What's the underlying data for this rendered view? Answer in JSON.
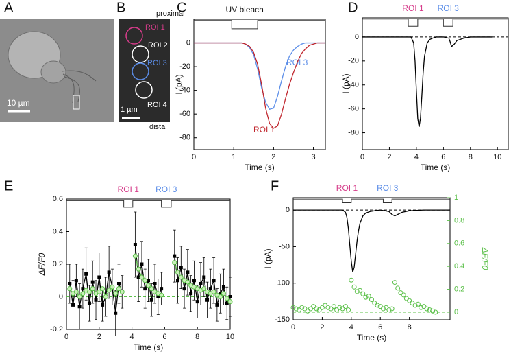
{
  "images": [
    {
      "panel": "A",
      "scale_bar": "10 µm"
    },
    {
      "panel": "B",
      "scale_bar": "1 µm",
      "top": "proximal",
      "bottom": "distal",
      "rois": [
        {
          "name": "ROI 1",
          "color": "#d63c8a"
        },
        {
          "name": "ROI 2",
          "color": "#ffffff"
        },
        {
          "name": "ROI 3",
          "color": "#5b8de8"
        },
        {
          "name": "ROI 4",
          "color": "#ffffff"
        }
      ]
    }
  ],
  "chart_data": [
    {
      "type": "line",
      "panel": "C",
      "xlabel": "Time (s)",
      "ylabel": "I (pA)",
      "xlim": [
        0,
        3.3
      ],
      "ylim": [
        -90,
        20
      ],
      "xticks": [
        0,
        1,
        2,
        3
      ],
      "yticks": [
        0,
        -20,
        -40,
        -60,
        -80
      ],
      "stimulus": {
        "label": "UV bleach",
        "high": 19,
        "low": 12,
        "color": "#333333",
        "pulses": [
          {
            "on": 0.95,
            "off": 1.6
          }
        ]
      },
      "reference_lines": [
        {
          "value": 0,
          "axis": "y",
          "color": "#000000"
        }
      ],
      "series": [
        {
          "name": "ROI 3",
          "color": "#5b8de8",
          "mode": "lines",
          "x": [
            0,
            0.1,
            0.2,
            0.3,
            0.4,
            0.5,
            0.6,
            0.7,
            0.8,
            0.9,
            1.0,
            1.1,
            1.2,
            1.3,
            1.4,
            1.5,
            1.6,
            1.7,
            1.8,
            1.9,
            2.0,
            2.1,
            2.2,
            2.3,
            2.4,
            2.5,
            2.6,
            2.7,
            2.8,
            2.9,
            3.0,
            3.1,
            3.2,
            3.3
          ],
          "values": [
            0,
            0,
            0,
            0,
            0,
            0,
            0,
            0,
            0,
            0,
            0,
            0,
            0,
            -1,
            -4,
            -10,
            -22,
            -38,
            -50,
            -56,
            -55,
            -45,
            -32,
            -20,
            -11,
            -6,
            -3,
            -1,
            0,
            0,
            0,
            0,
            0,
            0
          ]
        },
        {
          "name": "ROI 1",
          "color": "#c0262d",
          "mode": "lines",
          "x": [
            0,
            0.1,
            0.2,
            0.3,
            0.4,
            0.5,
            0.6,
            0.7,
            0.8,
            0.9,
            1.0,
            1.1,
            1.2,
            1.3,
            1.4,
            1.5,
            1.6,
            1.7,
            1.8,
            1.9,
            2.0,
            2.1,
            2.2,
            2.3,
            2.4,
            2.5,
            2.6,
            2.7,
            2.8,
            2.9,
            3.0,
            3.1,
            3.2,
            3.3
          ],
          "values": [
            0,
            0,
            0,
            0,
            0,
            0,
            0,
            0,
            0,
            0,
            0,
            0,
            0,
            -1,
            -3,
            -8,
            -18,
            -35,
            -55,
            -68,
            -72,
            -70,
            -60,
            -47,
            -35,
            -25,
            -16,
            -9,
            -5,
            -2,
            -1,
            0,
            0,
            0
          ]
        }
      ]
    },
    {
      "type": "line",
      "panel": "D",
      "xlabel": "Time (s)",
      "ylabel": "I (pA)",
      "xlim": [
        0,
        10.8
      ],
      "ylim": [
        -94,
        16
      ],
      "xticks": [
        0,
        2,
        4,
        6,
        8,
        10
      ],
      "yticks": [
        0,
        -20,
        -40,
        -60,
        -80
      ],
      "stimulus": {
        "high": 15,
        "low": 9,
        "color": "#333333",
        "pulses": [
          {
            "on": 3.4,
            "off": 4.1,
            "label": "ROI 1",
            "color": "#d63c8a"
          },
          {
            "on": 6.0,
            "off": 6.7,
            "label": "ROI 3",
            "color": "#5b8de8"
          }
        ]
      },
      "reference_lines": [
        {
          "value": 0,
          "axis": "y",
          "color": "#000000"
        }
      ],
      "series": [
        {
          "color": "#000000",
          "mode": "lines",
          "x": [
            0,
            1,
            2,
            3,
            3.6,
            3.8,
            3.9,
            4.0,
            4.1,
            4.2,
            4.3,
            4.4,
            4.5,
            4.6,
            4.8,
            5.0,
            5.2,
            5.5,
            6.0,
            6.4,
            6.5,
            6.6,
            6.8,
            7.0,
            7.5,
            8,
            9,
            9.6
          ],
          "values": [
            0,
            0,
            0,
            0,
            0,
            -5,
            -20,
            -45,
            -68,
            -75,
            -68,
            -50,
            -30,
            -16,
            -5,
            -2,
            -1,
            0,
            0,
            -1,
            -4,
            -8,
            -6,
            -3,
            -1,
            0,
            0,
            0
          ]
        }
      ]
    },
    {
      "type": "line",
      "panel": "E",
      "xlabel": "Time (s)",
      "ylabel": "ΔF/F0",
      "xlim": [
        0,
        10
      ],
      "ylim": [
        -0.2,
        0.6
      ],
      "xticks": [
        0,
        2,
        4,
        6,
        8,
        10
      ],
      "yticks": [
        -0.2,
        0,
        0.2,
        0.4,
        0.6
      ],
      "stimulus": {
        "high": 0.59,
        "low": 0.55,
        "color": "#333333",
        "pulses": [
          {
            "on": 3.5,
            "off": 4.05,
            "label": "ROI 1",
            "color": "#d63c8a"
          },
          {
            "on": 5.8,
            "off": 6.4,
            "label": "ROI 3",
            "color": "#5b8de8"
          }
        ]
      },
      "reference_lines": [
        {
          "value": 0,
          "axis": "y",
          "color": "#5cc04a"
        }
      ],
      "series": [
        {
          "color": "#000000",
          "mode": "lines+markers",
          "marker": "square",
          "x": [
            0.2,
            0.4,
            0.6,
            0.8,
            1.0,
            1.2,
            1.4,
            1.6,
            1.8,
            2.0,
            2.2,
            2.4,
            2.6,
            2.8,
            3.0,
            3.2,
            3.4,
            3.6,
            3.8,
            4.0,
            4.2,
            4.4,
            4.6,
            4.8,
            5.0,
            5.2,
            5.4,
            5.6,
            5.8,
            6.0,
            6.2,
            6.4,
            6.6,
            6.8,
            7.0,
            7.2,
            7.4,
            7.6,
            7.8,
            8.0,
            8.2,
            8.4,
            8.6,
            8.8,
            9.0,
            9.2,
            9.4,
            9.6,
            9.8,
            10.0
          ],
          "values": [
            0.08,
            -0.05,
            0.1,
            -0.06,
            0.05,
            0.14,
            -0.04,
            0.09,
            -0.02,
            0.12,
            -0.05,
            0.0,
            0.15,
            0.06,
            -0.1,
            0.08,
            0.03,
            null,
            null,
            null,
            0.32,
            0.12,
            0.2,
            0.05,
            0.1,
            -0.02,
            0.08,
            0.0,
            0.05,
            null,
            null,
            null,
            0.25,
            0.1,
            0.18,
            0.05,
            0.15,
            0.02,
            0.1,
            -0.03,
            0.08,
            0.12,
            -0.02,
            0.05,
            0.1,
            -0.05,
            0.02,
            0.06,
            -0.04,
            0.0
          ],
          "errors": [
            0.12,
            0.15,
            0.1,
            0.14,
            0.12,
            0.16,
            0.11,
            0.13,
            0.12,
            0.15,
            0.1,
            0.12,
            0.16,
            0.11,
            0.14,
            0.12,
            0.1,
            null,
            null,
            null,
            0.2,
            0.15,
            0.14,
            0.12,
            0.13,
            0.1,
            0.12,
            0.11,
            0.1,
            null,
            null,
            null,
            0.16,
            0.14,
            0.13,
            0.12,
            0.14,
            0.11,
            0.12,
            0.1,
            0.13,
            0.12,
            0.11,
            0.12,
            0.14,
            0.1,
            0.12,
            0.11,
            0.1,
            0.12
          ]
        },
        {
          "color": "#5cc04a",
          "mode": "lines+markers",
          "marker": "circle",
          "x": [
            0.2,
            0.4,
            0.6,
            0.8,
            1.0,
            1.2,
            1.4,
            1.6,
            1.8,
            2.0,
            2.2,
            2.4,
            2.6,
            2.8,
            3.0,
            3.2,
            3.4,
            3.6,
            3.8,
            4.0,
            4.2,
            4.4,
            4.6,
            4.8,
            5.0,
            5.2,
            5.4,
            5.6,
            5.8,
            6.0,
            6.2,
            6.4,
            6.6,
            6.8,
            7.0,
            7.2,
            7.4,
            7.6,
            7.8,
            8.0,
            8.2,
            8.4,
            8.6,
            8.8,
            9.0,
            9.2,
            9.4,
            9.6,
            9.8,
            10.0
          ],
          "values": [
            0.05,
            0.02,
            0.03,
            0.0,
            0.02,
            0.04,
            0.03,
            0.05,
            0.02,
            0.03,
            0.05,
            0.0,
            0.04,
            0.06,
            0.02,
            0.05,
            0.03,
            null,
            null,
            null,
            0.25,
            0.17,
            0.12,
            0.1,
            0.07,
            0.05,
            0.03,
            0.02,
            0.01,
            null,
            null,
            null,
            0.21,
            0.15,
            0.12,
            0.1,
            0.09,
            0.07,
            0.06,
            0.05,
            0.04,
            0.05,
            0.03,
            0.02,
            0.03,
            0.01,
            0.0,
            0.02,
            -0.01,
            -0.03
          ]
        }
      ]
    },
    {
      "type": "line",
      "panel": "F",
      "xlabel": "Time (s)",
      "ylabel": "I (pA)",
      "y2label": "ΔF/F0",
      "y2color": "#5cc04a",
      "xlim": [
        0,
        10.8
      ],
      "ylim": [
        -150,
        17
      ],
      "y2lim": [
        -0.066,
        1
      ],
      "xticks": [
        0,
        2,
        4,
        6,
        8
      ],
      "yticks": [
        0,
        -50,
        -100,
        -150
      ],
      "y2ticks": [
        0,
        0.2,
        0.4,
        0.6,
        0.8,
        1
      ],
      "stimulus": {
        "high": 15,
        "low": 10,
        "color": "#333333",
        "pulses": [
          {
            "on": 3.4,
            "off": 4.0,
            "label": "ROI 1",
            "color": "#d63c8a"
          },
          {
            "on": 6.2,
            "off": 6.8,
            "label": "ROI 3",
            "color": "#5b8de8"
          }
        ]
      },
      "reference_lines": [
        {
          "value": 0,
          "axis": "y",
          "color": "#000000"
        },
        {
          "value": 0,
          "axis": "y2",
          "color": "#5cc04a"
        }
      ],
      "series": [
        {
          "color": "#000000",
          "mode": "lines",
          "x": [
            0,
            1,
            2,
            3,
            3.4,
            3.6,
            3.7,
            3.8,
            3.9,
            4.0,
            4.1,
            4.2,
            4.3,
            4.4,
            4.5,
            4.6,
            4.8,
            5.0,
            5.3,
            5.6,
            6.0,
            6.6,
            6.8,
            7.0,
            7.2,
            7.5,
            8,
            9,
            10,
            10.8
          ],
          "values": [
            0,
            0,
            0,
            0,
            0,
            -3,
            -10,
            -25,
            -48,
            -70,
            -85,
            -78,
            -60,
            -42,
            -28,
            -18,
            -8,
            -4,
            -2,
            -1,
            0,
            -2,
            -6,
            -8,
            -6,
            -3,
            -1,
            0,
            0,
            0
          ]
        },
        {
          "color": "#5cc04a",
          "mode": "markers",
          "marker": "circle-open",
          "axis": "y2",
          "x": [
            0,
            0.2,
            0.4,
            0.6,
            0.8,
            1.0,
            1.2,
            1.4,
            1.6,
            1.8,
            2.0,
            2.2,
            2.4,
            2.6,
            2.8,
            3.0,
            3.2,
            3.4,
            3.6,
            3.8,
            4.0,
            4.2,
            4.4,
            4.6,
            4.8,
            5.0,
            5.2,
            5.4,
            5.6,
            5.8,
            6.0,
            6.2,
            6.4,
            6.6,
            6.8,
            7.0,
            7.2,
            7.4,
            7.6,
            7.8,
            8.0,
            8.2,
            8.4,
            8.6,
            8.8,
            9.0,
            9.2,
            9.4,
            9.6,
            9.8
          ],
          "values": [
            0.04,
            0.03,
            0.02,
            0.04,
            0.03,
            0.01,
            0.03,
            0.05,
            0.03,
            0.02,
            0.04,
            0.06,
            0.04,
            0.03,
            0.05,
            0.02,
            0.04,
            0.03,
            0.05,
            0.02,
            0.28,
            0.22,
            0.18,
            0.19,
            0.16,
            0.13,
            0.14,
            0.11,
            0.08,
            0.06,
            0.05,
            0.03,
            0.04,
            0.02,
            0.03,
            0.26,
            0.21,
            0.17,
            0.15,
            0.12,
            0.1,
            0.08,
            0.06,
            0.07,
            0.04,
            0.05,
            0.03,
            0.02,
            0.01,
            0.0
          ]
        }
      ]
    }
  ]
}
